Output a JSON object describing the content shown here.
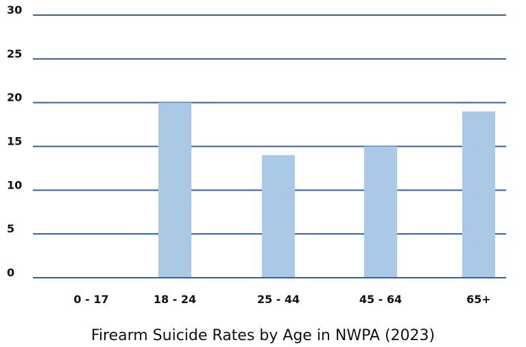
{
  "chart_data": {
    "type": "bar",
    "title": "Firearm Suicide Rates by Age in NWPA (2023)",
    "xlabel": "",
    "ylabel": "",
    "categories": [
      "0 - 17",
      "18 - 24",
      "25 - 44",
      "45 - 64",
      "65+"
    ],
    "values": [
      0,
      20,
      14,
      15,
      19
    ],
    "ylim": [
      0,
      30
    ],
    "yticks": [
      0,
      5,
      10,
      15,
      20,
      25,
      30
    ],
    "grid": true,
    "legend": "none",
    "colors": {
      "bar": "#a9c9e6",
      "grid": "#2e5fa8",
      "text": "#111111"
    }
  }
}
